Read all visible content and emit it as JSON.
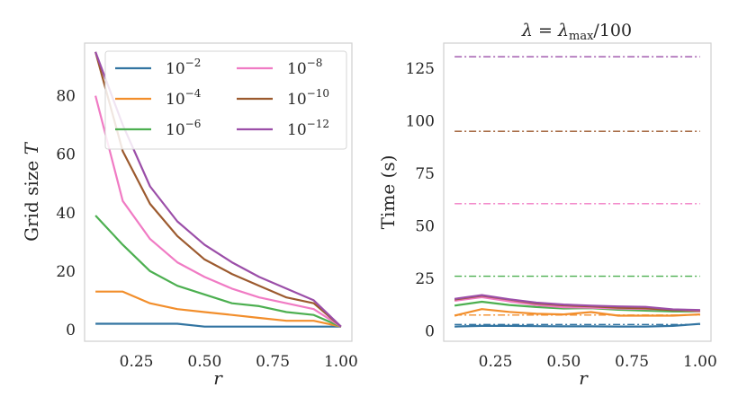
{
  "chart_data": [
    {
      "type": "line",
      "title": "",
      "xlabel": "r",
      "ylabel_prefix": "Grid size",
      "ylabel_var": "T",
      "xlim": [
        0.06,
        1.04
      ],
      "ylim": [
        -4,
        98
      ],
      "xticks": [
        0.25,
        0.5,
        0.75,
        1.0
      ],
      "xtick_labels": [
        "0.25",
        "0.50",
        "0.75",
        "1.00"
      ],
      "yticks": [
        0,
        20,
        40,
        60,
        80
      ],
      "ytick_labels": [
        "0",
        "20",
        "40",
        "60",
        "80"
      ],
      "legend": {
        "placement": "top-right",
        "columns": 2
      },
      "series": [
        {
          "name": "10^-2",
          "base": "10",
          "exp": "−2",
          "color": "#3274a1",
          "x": [
            0.1,
            0.2,
            0.3,
            0.4,
            0.5,
            0.6,
            0.7,
            0.8,
            0.9,
            1.0
          ],
          "y": [
            2,
            2,
            2,
            2,
            1,
            1,
            1,
            1,
            1,
            1
          ]
        },
        {
          "name": "10^-4",
          "base": "10",
          "exp": "−4",
          "color": "#f28e2b",
          "x": [
            0.1,
            0.2,
            0.3,
            0.4,
            0.5,
            0.6,
            0.7,
            0.8,
            0.9,
            1.0
          ],
          "y": [
            13,
            13,
            9,
            7,
            6,
            5,
            4,
            3,
            3,
            1
          ]
        },
        {
          "name": "10^-6",
          "base": "10",
          "exp": "−6",
          "color": "#4caf50",
          "x": [
            0.1,
            0.2,
            0.3,
            0.4,
            0.5,
            0.6,
            0.7,
            0.8,
            0.9,
            1.0
          ],
          "y": [
            39,
            29,
            20,
            15,
            12,
            9,
            8,
            6,
            5,
            1
          ]
        },
        {
          "name": "10^-8",
          "base": "10",
          "exp": "−8",
          "color": "#f07bc4",
          "x": [
            0.1,
            0.2,
            0.3,
            0.4,
            0.5,
            0.6,
            0.7,
            0.8,
            0.9,
            1.0
          ],
          "y": [
            80,
            44,
            31,
            23,
            18,
            14,
            11,
            9,
            7,
            1
          ]
        },
        {
          "name": "10^-10",
          "base": "10",
          "exp": "−10",
          "color": "#9c5a2e",
          "x": [
            0.1,
            0.2,
            0.3,
            0.4,
            0.5,
            0.6,
            0.7,
            0.8,
            0.9,
            1.0
          ],
          "y": [
            95,
            61,
            43,
            32,
            24,
            19,
            15,
            11,
            9,
            1
          ]
        },
        {
          "name": "10^-12",
          "base": "10",
          "exp": "−12",
          "color": "#9b4ea8",
          "x": [
            0.1,
            0.2,
            0.3,
            0.4,
            0.5,
            0.6,
            0.7,
            0.8,
            0.9,
            1.0
          ],
          "y": [
            95,
            70,
            49,
            37,
            29,
            23,
            18,
            14,
            10,
            1
          ]
        }
      ]
    },
    {
      "type": "line",
      "title_prefix": "λ = λ",
      "title_sub": "max",
      "title_suffix": "/100",
      "xlabel": "r",
      "ylabel": "Time (s)",
      "xlim": [
        0.06,
        1.04
      ],
      "ylim": [
        -5,
        137
      ],
      "xticks": [
        0.25,
        0.5,
        0.75,
        1.0
      ],
      "xtick_labels": [
        "0.25",
        "0.50",
        "0.75",
        "1.00"
      ],
      "yticks": [
        0,
        25,
        50,
        75,
        100,
        125
      ],
      "ytick_labels": [
        "0",
        "25",
        "50",
        "75",
        "100",
        "125"
      ],
      "series": [
        {
          "name": "10^-2",
          "color": "#3274a1",
          "x": [
            0.1,
            0.2,
            0.3,
            0.4,
            0.5,
            0.6,
            0.7,
            0.8,
            0.9,
            1.0
          ],
          "y": [
            2,
            2.3,
            2.3,
            2.2,
            2.1,
            2.1,
            2,
            2,
            2.3,
            3.3
          ]
        },
        {
          "name": "10^-4",
          "color": "#f28e2b",
          "x": [
            0.1,
            0.2,
            0.3,
            0.4,
            0.5,
            0.6,
            0.7,
            0.8,
            0.9,
            1.0
          ],
          "y": [
            7.2,
            10.3,
            9,
            8.1,
            7.8,
            8.9,
            7.2,
            7.2,
            7.2,
            7.8
          ]
        },
        {
          "name": "10^-6",
          "color": "#4caf50",
          "x": [
            0.1,
            0.2,
            0.3,
            0.4,
            0.5,
            0.6,
            0.7,
            0.8,
            0.9,
            1.0
          ],
          "y": [
            12,
            13.8,
            12.3,
            11.3,
            10.6,
            10.8,
            10,
            9.6,
            9.2,
            9.2
          ]
        },
        {
          "name": "10^-8",
          "color": "#f07bc4",
          "x": [
            0.1,
            0.2,
            0.3,
            0.4,
            0.5,
            0.6,
            0.7,
            0.8,
            0.9,
            1.0
          ],
          "y": [
            14.3,
            16,
            14,
            12.3,
            11.2,
            11,
            10.6,
            10.4,
            10,
            9.3
          ]
        },
        {
          "name": "10^-10",
          "color": "#9c5a2e",
          "x": [
            0.1,
            0.2,
            0.3,
            0.4,
            0.5,
            0.6,
            0.7,
            0.8,
            0.9,
            1.0
          ],
          "y": [
            14.9,
            16.7,
            14.9,
            13,
            12.1,
            11.6,
            11,
            10.7,
            9.8,
            9.7
          ]
        },
        {
          "name": "10^-12",
          "color": "#9b4ea8",
          "x": [
            0.1,
            0.2,
            0.3,
            0.4,
            0.5,
            0.6,
            0.7,
            0.8,
            0.9,
            1.0
          ],
          "y": [
            15.2,
            17,
            15,
            13.4,
            12.5,
            12,
            11.6,
            11.4,
            10.2,
            9.9
          ]
        }
      ],
      "reference_lines": [
        {
          "name": "10^-2",
          "color": "#3274a1",
          "y": 3
        },
        {
          "name": "10^-4",
          "color": "#f28e2b",
          "y": 7.5
        },
        {
          "name": "10^-6",
          "color": "#4caf50",
          "y": 26
        },
        {
          "name": "10^-8",
          "color": "#f07bc4",
          "y": 60.5
        },
        {
          "name": "10^-10",
          "color": "#9c5a2e",
          "y": 95
        },
        {
          "name": "10^-12",
          "color": "#9b4ea8",
          "y": 130.5
        }
      ]
    }
  ]
}
